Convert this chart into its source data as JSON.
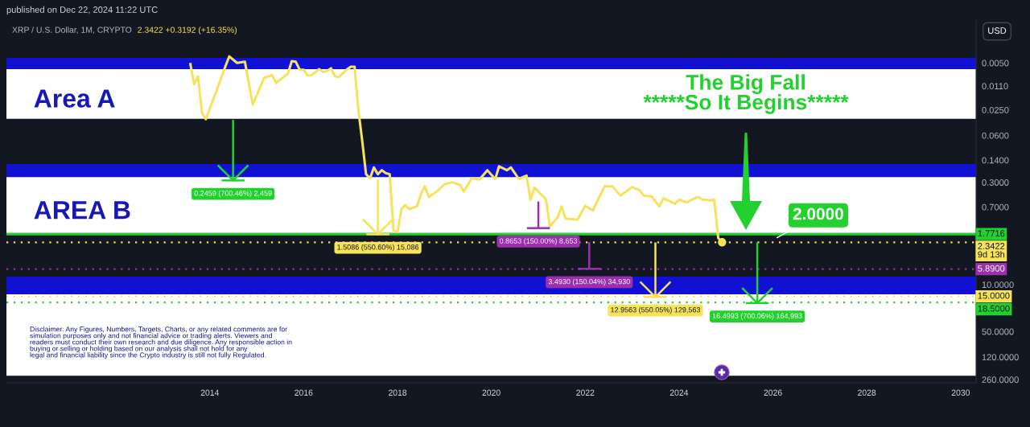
{
  "chart_data": {
    "type": "line",
    "title": "XRP / U.S. Dollar, 1M, CRYPTO",
    "subtitle": "2.3422 +0.3192 (+16.35%)",
    "log": "y",
    "xlim": [
      "2009-09",
      "2030-05"
    ],
    "xticks": [
      "2014",
      "2016",
      "2018",
      "2020",
      "2022",
      "2024",
      "2026",
      "2028",
      "2030"
    ],
    "ylim": [
      290,
      0.00115
    ],
    "yticks": [
      {
        "value": 0.005,
        "label": "0.0050"
      },
      {
        "value": 0.011,
        "label": "0.0110"
      },
      {
        "value": 0.025,
        "label": "0.0250"
      },
      {
        "value": 0.06,
        "label": "0.0600"
      },
      {
        "value": 0.14,
        "label": "0.1400"
      },
      {
        "value": 0.3,
        "label": "0.3000"
      },
      {
        "value": 0.7,
        "label": "0.7000"
      },
      {
        "value": 10,
        "label": "10.0000"
      },
      {
        "value": 50,
        "label": "50.0000"
      },
      {
        "value": 120,
        "label": "120.0000"
      },
      {
        "value": 260,
        "label": "260.0000"
      }
    ],
    "bands": [
      {
        "axis": "y",
        "from": 0.0042,
        "to": 0.0062,
        "color": "#1111d4"
      },
      {
        "axis": "y",
        "from": 0.0062,
        "to": 0.034,
        "color": "#ffffff",
        "label": "Area A"
      },
      {
        "axis": "y",
        "from": 0.16,
        "to": 0.25,
        "color": "#1111d4"
      },
      {
        "axis": "y",
        "from": 0.25,
        "to": 1.7716,
        "color": "#ffffff",
        "label": "AREA B"
      },
      {
        "axis": "y",
        "from": 7.6,
        "to": 14,
        "color": "#1111d4"
      },
      {
        "axis": "y",
        "from": 14,
        "to": 228,
        "color": "#ffffff"
      }
    ],
    "ref_lines": [
      {
        "axis": "y",
        "value": 1.7716,
        "label": "1.7716",
        "color": "#22d12e",
        "line_style": "solid"
      },
      {
        "axis": "y",
        "value": 2.3422,
        "label": "2.3422\n9d 13h",
        "color": "#f7e35a",
        "line_style": "dotted"
      },
      {
        "axis": "y",
        "value": 5.89,
        "label": "5.8900",
        "color": "#9b2fae",
        "line_style": "dotted"
      },
      {
        "axis": "y",
        "value": 15,
        "label": "15.0000",
        "color": "#f7e35a",
        "line_style": "dotted"
      },
      {
        "axis": "y",
        "value": 18.5,
        "label": "18.5000",
        "color": "#22d12e",
        "line_style": "dotted"
      }
    ],
    "series": [
      {
        "color": "#f5e35f",
        "x": [
          "2013-08",
          "2013-09",
          "2013-10",
          "2013-11",
          "2013-12",
          "2014-03",
          "2014-05",
          "2014-06",
          "2014-08",
          "2014-10",
          "2014-12",
          "2015-03",
          "2015-05",
          "2015-06",
          "2015-09",
          "2015-10",
          "2015-11",
          "2015-12",
          "2016-01",
          "2016-02",
          "2016-03",
          "2016-05",
          "2016-06",
          "2016-07",
          "2016-08",
          "2016-09",
          "2016-10",
          "2016-12",
          "2017-01",
          "2017-02",
          "2017-03",
          "2017-04",
          "2017-05",
          "2017-06",
          "2017-07",
          "2017-08",
          "2017-09",
          "2017-10",
          "2017-11",
          "2017-12",
          "2018-01",
          "2018-02",
          "2018-03",
          "2018-04",
          "2018-06",
          "2018-07",
          "2018-08",
          "2018-09",
          "2018-11",
          "2019-01",
          "2019-03",
          "2019-05",
          "2019-06",
          "2019-08",
          "2019-10",
          "2019-12",
          "2020-02",
          "2020-03",
          "2020-05",
          "2020-06",
          "2020-07",
          "2020-08",
          "2020-10",
          "2020-11",
          "2020-12",
          "2021-03",
          "2021-04",
          "2021-06",
          "2021-07",
          "2021-08",
          "2021-11",
          "2022-01",
          "2022-03",
          "2022-06",
          "2022-08",
          "2022-10",
          "2023-01",
          "2023-03",
          "2023-04",
          "2023-06",
          "2023-08",
          "2023-09",
          "2023-12",
          "2024-01",
          "2024-03",
          "2024-05",
          "2024-06",
          "2024-07",
          "2024-09",
          "2024-10",
          "2024-11",
          "2024-12"
        ],
        "values": [
          0.005,
          0.0104,
          0.0079,
          0.0274,
          0.0344,
          0.012,
          0.0057,
          0.004,
          0.005,
          0.0048,
          0.0208,
          0.0083,
          0.0076,
          0.0099,
          0.0072,
          0.0047,
          0.0048,
          0.0063,
          0.0063,
          0.0077,
          0.0076,
          0.0062,
          0.0068,
          0.0066,
          0.006,
          0.0079,
          0.0081,
          0.0063,
          0.0057,
          0.0057,
          0.024,
          0.072,
          0.227,
          0.261,
          0.18,
          0.227,
          0.198,
          0.218,
          0.227,
          1.57,
          1.64,
          0.75,
          0.653,
          0.75,
          0.686,
          0.453,
          0.344,
          0.496,
          0.412,
          0.321,
          0.299,
          0.328,
          0.412,
          0.261,
          0.272,
          0.198,
          0.268,
          0.173,
          0.198,
          0.18,
          0.217,
          0.267,
          0.238,
          0.543,
          0.359,
          0.538,
          1.36,
          0.99,
          0.686,
          1.04,
          1.08,
          0.671,
          0.785,
          0.344,
          0.344,
          0.473,
          0.353,
          0.394,
          0.473,
          0.486,
          0.686,
          0.52,
          0.624,
          0.543,
          0.597,
          0.52,
          0.496,
          0.543,
          0.558,
          0.543,
          2.02,
          2.3422
        ]
      },
      {
        "color": "#22d12e",
        "x": [
          "2014-07",
          "2014-07"
        ],
        "values": [
          0.0351,
          0.281
        ]
      },
      {
        "color": "#f7e35a",
        "x": [
          "2017-08",
          "2017-08"
        ],
        "values": [
          0.274,
          1.783
        ]
      },
      {
        "color": "#9b2fae",
        "x": [
          "2021-01",
          "2021-01"
        ],
        "values": [
          0.577,
          1.442
        ]
      },
      {
        "color": "#9b2fae",
        "x": [
          "2022-02",
          "2022-02"
        ],
        "values": [
          2.328,
          5.821
        ]
      },
      {
        "color": "#f7e35a",
        "x": [
          "2023-07",
          "2023-07"
        ],
        "values": [
          2.356,
          15.31
        ]
      },
      {
        "color": "#22d12e",
        "x": [
          "2025-09",
          "2025-09"
        ],
        "values": [
          2.357,
          18.86
        ]
      },
      {
        "type": "scatter",
        "color": "#f7e35a",
        "marker": "circle",
        "x": [
          "2024-12"
        ],
        "values": [
          2.3422
        ]
      }
    ],
    "annotations": [
      "published on Dec 22, 2024 11:22 UTC",
      "USD",
      "Disclaimer: Any Figures, Numbers, Targets, Charts, or any related comments are for\nsimulation purposes only and not financial advice or trading alerts. Viewers and\nreaders must conduct their own research and due diligence. Any responsible action in\nbuying or selling or holding based on our analysis shall not hold for any\nlegal and financial liability since the Crypto industry is still not fully Regulated.",
      "The Big Fall\n*****So It Begins*****",
      {
        "text": "2.0000",
        "x": "2026-02",
        "y": 2.0
      },
      {
        "text": "0.2459 (700.46%) 2,459",
        "x": "2014-07",
        "y": 0.281
      },
      {
        "text": "1.5086 (550.60%) 15,086",
        "x": "2017-08",
        "y": 1.783
      },
      {
        "text": "0.8653 (150.00%) 8,653",
        "x": "2021-01",
        "y": 1.442
      },
      {
        "text": "3.4930 (150.04%) 34,930",
        "x": "2022-02",
        "y": 5.821
      },
      {
        "text": "12.9563 (550.05%) 129,563",
        "x": "2023-07",
        "y": 15.31
      },
      {
        "text": "16.4993 (700.06%) 164,993",
        "x": "2025-09",
        "y": 18.86
      }
    ]
  }
}
